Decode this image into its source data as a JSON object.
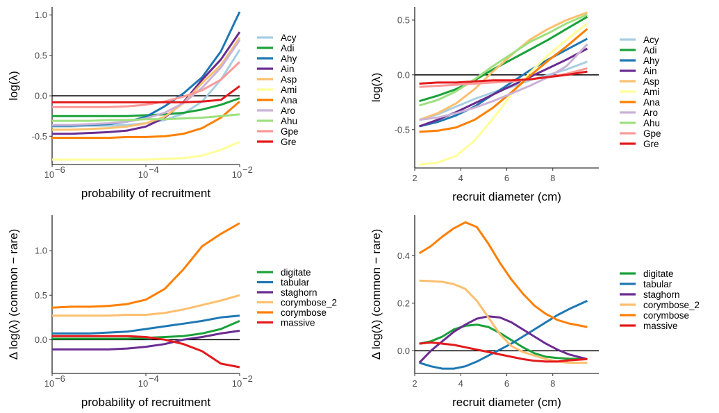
{
  "colors": {
    "Acy": "#a6cee3",
    "Adi": "#1aa13a",
    "Ahy": "#1f78b4",
    "Ain": "#6a2c91",
    "Asp": "#fdbf6f",
    "Ami": "#ffff99",
    "Ana": "#ff7f00",
    "Aro": "#cab2d6",
    "Ahu": "#9ee07f",
    "Gpe": "#fb9a99",
    "Gre": "#e31a1c",
    "digitate": "#1aa13a",
    "tabular": "#1f78b4",
    "staghorn": "#6a2c91",
    "corymbose_2": "#fdbf6f",
    "corymbose": "#ff7f00",
    "massive": "#e31a1c"
  },
  "chart_data": [
    {
      "id": "tl",
      "type": "line",
      "xscale": "log10",
      "xlabel": "probability of recruitment",
      "ylabel": "log(λ)",
      "xlim": [
        -6,
        -2
      ],
      "ylim": [
        -0.85,
        1.1
      ],
      "xticks": [
        -6,
        -4,
        -2
      ],
      "xticklabels": [
        "10",
        "10",
        "10"
      ],
      "xtickexp": [
        "−6",
        "−4",
        "−2"
      ],
      "yticks": [
        -0.5,
        0,
        0.5,
        1
      ],
      "yticklabels": [
        "-0.5",
        "0.0",
        "0.5",
        "1.0"
      ],
      "hline": 0,
      "x": [
        -6,
        -5.6,
        -5.2,
        -4.8,
        -4.4,
        -4,
        -3.6,
        -3.2,
        -2.8,
        -2.4,
        -2
      ],
      "series": [
        {
          "name": "Acy",
          "values": [
            -0.38,
            -0.38,
            -0.37,
            -0.37,
            -0.36,
            -0.34,
            -0.3,
            -0.22,
            -0.07,
            0.2,
            0.57
          ]
        },
        {
          "name": "Adi",
          "values": [
            -0.25,
            -0.25,
            -0.25,
            -0.25,
            -0.25,
            -0.24,
            -0.23,
            -0.21,
            -0.17,
            -0.11,
            -0.03
          ]
        },
        {
          "name": "Ahy",
          "values": [
            -0.37,
            -0.37,
            -0.36,
            -0.35,
            -0.32,
            -0.26,
            -0.13,
            0.03,
            0.23,
            0.55,
            1.04
          ]
        },
        {
          "name": "Ain",
          "values": [
            -0.47,
            -0.47,
            -0.46,
            -0.45,
            -0.43,
            -0.38,
            -0.27,
            -0.08,
            0.2,
            0.45,
            0.79
          ]
        },
        {
          "name": "Asp",
          "values": [
            -0.42,
            -0.42,
            -0.41,
            -0.4,
            -0.38,
            -0.34,
            -0.26,
            -0.09,
            0.16,
            0.38,
            0.72
          ]
        },
        {
          "name": "Ami",
          "values": [
            -0.79,
            -0.79,
            -0.79,
            -0.79,
            -0.79,
            -0.79,
            -0.78,
            -0.77,
            -0.74,
            -0.67,
            -0.57
          ]
        },
        {
          "name": "Ana",
          "values": [
            -0.52,
            -0.52,
            -0.52,
            -0.52,
            -0.51,
            -0.51,
            -0.5,
            -0.47,
            -0.4,
            -0.27,
            -0.07
          ]
        },
        {
          "name": "Aro",
          "values": [
            -0.36,
            -0.36,
            -0.35,
            -0.34,
            -0.32,
            -0.28,
            -0.21,
            -0.09,
            0.1,
            0.35,
            0.69
          ]
        },
        {
          "name": "Ahu",
          "values": [
            -0.31,
            -0.31,
            -0.31,
            -0.3,
            -0.3,
            -0.29,
            -0.29,
            -0.28,
            -0.27,
            -0.25,
            -0.23
          ]
        },
        {
          "name": "Gpe",
          "values": [
            -0.14,
            -0.14,
            -0.14,
            -0.14,
            -0.13,
            -0.11,
            -0.07,
            -0.01,
            0.07,
            0.2,
            0.42
          ]
        },
        {
          "name": "Gre",
          "values": [
            -0.08,
            -0.08,
            -0.08,
            -0.08,
            -0.08,
            -0.08,
            -0.08,
            -0.08,
            -0.07,
            -0.05,
            0.12
          ]
        }
      ]
    },
    {
      "id": "tr",
      "type": "line",
      "xscale": "linear",
      "xlabel": "recruit diameter (cm)",
      "ylabel": "log(λ)",
      "xlim": [
        2,
        10
      ],
      "ylim": [
        -0.85,
        0.62
      ],
      "xticks": [
        2,
        4,
        6,
        8
      ],
      "xticklabels": [
        "2",
        "4",
        "6",
        "8"
      ],
      "yticks": [
        -0.5,
        0,
        0.5
      ],
      "yticklabels": [
        "-0.5",
        "0.0",
        "0.5"
      ],
      "hline": 0,
      "x": [
        2.2,
        3,
        3.8,
        4.6,
        5.4,
        6.2,
        7,
        7.8,
        8.6,
        9.5
      ],
      "series": [
        {
          "name": "Acy",
          "values": [
            -0.41,
            -0.36,
            -0.29,
            -0.22,
            -0.16,
            -0.11,
            -0.05,
            0.0,
            0.05,
            0.12
          ]
        },
        {
          "name": "Adi",
          "values": [
            -0.24,
            -0.19,
            -0.13,
            -0.05,
            0.05,
            0.14,
            0.23,
            0.32,
            0.42,
            0.53
          ]
        },
        {
          "name": "Ahy",
          "values": [
            -0.47,
            -0.43,
            -0.37,
            -0.29,
            -0.18,
            -0.07,
            0.04,
            0.14,
            0.23,
            0.33
          ]
        },
        {
          "name": "Ain",
          "values": [
            -0.47,
            -0.41,
            -0.34,
            -0.26,
            -0.18,
            -0.1,
            -0.02,
            0.06,
            0.14,
            0.24
          ]
        },
        {
          "name": "Asp",
          "values": [
            -0.41,
            -0.35,
            -0.26,
            -0.13,
            0.03,
            0.18,
            0.32,
            0.42,
            0.5,
            0.57
          ]
        },
        {
          "name": "Ami",
          "values": [
            -0.82,
            -0.8,
            -0.74,
            -0.6,
            -0.4,
            -0.18,
            0.02,
            0.18,
            0.32,
            0.47
          ]
        },
        {
          "name": "Ana",
          "values": [
            -0.52,
            -0.51,
            -0.48,
            -0.41,
            -0.3,
            -0.16,
            -0.01,
            0.13,
            0.26,
            0.42
          ]
        },
        {
          "name": "Aro",
          "values": [
            -0.41,
            -0.39,
            -0.35,
            -0.3,
            -0.24,
            -0.17,
            -0.1,
            -0.02,
            0.08,
            0.28
          ]
        },
        {
          "name": "Ahu",
          "values": [
            -0.28,
            -0.23,
            -0.15,
            -0.04,
            0.08,
            0.19,
            0.3,
            0.38,
            0.47,
            0.55
          ]
        },
        {
          "name": "Gpe",
          "values": [
            -0.11,
            -0.1,
            -0.09,
            -0.08,
            -0.07,
            -0.06,
            -0.04,
            -0.02,
            0.01,
            0.06
          ]
        },
        {
          "name": "Gre",
          "values": [
            -0.08,
            -0.07,
            -0.07,
            -0.06,
            -0.05,
            -0.05,
            -0.04,
            -0.02,
            0.0,
            0.03
          ]
        }
      ]
    },
    {
      "id": "bl",
      "type": "line",
      "xscale": "log10",
      "xlabel": "probability of recruitment",
      "ylabel": "Δ log(λ) (common − rare)",
      "xlim": [
        -6,
        -2
      ],
      "ylim": [
        -0.38,
        1.4
      ],
      "xticks": [
        -6,
        -4,
        -2
      ],
      "xticklabels": [
        "10",
        "10",
        "10"
      ],
      "xtickexp": [
        "−6",
        "−4",
        "−2"
      ],
      "yticks": [
        0,
        0.5,
        1
      ],
      "yticklabels": [
        "0.0",
        "0.5",
        "1.0"
      ],
      "hline": 0,
      "x": [
        -6,
        -5.6,
        -5.2,
        -4.8,
        -4.4,
        -4,
        -3.6,
        -3.2,
        -2.8,
        -2.4,
        -2
      ],
      "series": [
        {
          "name": "digitate",
          "values": [
            0.01,
            0.01,
            0.01,
            0.01,
            0.01,
            0.02,
            0.03,
            0.04,
            0.07,
            0.12,
            0.21
          ]
        },
        {
          "name": "tabular",
          "values": [
            0.07,
            0.07,
            0.07,
            0.08,
            0.09,
            0.12,
            0.15,
            0.18,
            0.21,
            0.25,
            0.27
          ]
        },
        {
          "name": "staghorn",
          "values": [
            -0.11,
            -0.11,
            -0.11,
            -0.11,
            -0.1,
            -0.08,
            -0.05,
            0.0,
            0.03,
            0.07,
            0.1
          ]
        },
        {
          "name": "corymbose_2",
          "values": [
            0.27,
            0.27,
            0.27,
            0.27,
            0.28,
            0.28,
            0.3,
            0.34,
            0.39,
            0.44,
            0.5
          ]
        },
        {
          "name": "corymbose",
          "values": [
            0.36,
            0.37,
            0.37,
            0.38,
            0.4,
            0.45,
            0.57,
            0.79,
            1.05,
            1.19,
            1.31
          ]
        },
        {
          "name": "massive",
          "values": [
            0.04,
            0.04,
            0.04,
            0.04,
            0.04,
            0.03,
            0.0,
            -0.05,
            -0.13,
            -0.27,
            -0.31
          ]
        }
      ]
    },
    {
      "id": "br",
      "type": "line",
      "xscale": "linear",
      "xlabel": "recruit diameter (cm)",
      "ylabel": "Δ log(λ) (common − rare)",
      "xlim": [
        2,
        10
      ],
      "ylim": [
        -0.095,
        0.57
      ],
      "xticks": [
        2,
        4,
        6,
        8
      ],
      "xticklabels": [
        "2",
        "4",
        "6",
        "8"
      ],
      "yticks": [
        0,
        0.2,
        0.4
      ],
      "yticklabels": [
        "0.0",
        "0.2",
        "0.4"
      ],
      "hline": 0,
      "x": [
        2.2,
        2.7,
        3.2,
        3.7,
        4.2,
        4.7,
        5.2,
        5.7,
        6.2,
        6.7,
        7.2,
        7.7,
        8.2,
        8.7,
        9.5
      ],
      "series": [
        {
          "name": "digitate",
          "values": [
            0.03,
            0.04,
            0.06,
            0.09,
            0.105,
            0.11,
            0.1,
            0.075,
            0.045,
            0.015,
            -0.01,
            -0.025,
            -0.03,
            -0.033,
            -0.035
          ]
        },
        {
          "name": "tabular",
          "values": [
            -0.05,
            -0.065,
            -0.075,
            -0.075,
            -0.065,
            -0.045,
            -0.02,
            0.005,
            0.03,
            0.06,
            0.09,
            0.12,
            0.15,
            0.175,
            0.21
          ]
        },
        {
          "name": "staghorn",
          "values": [
            -0.05,
            0.0,
            0.04,
            0.08,
            0.11,
            0.135,
            0.145,
            0.14,
            0.12,
            0.09,
            0.06,
            0.03,
            0.005,
            -0.015,
            -0.035
          ]
        },
        {
          "name": "corymbose_2",
          "values": [
            0.295,
            0.293,
            0.29,
            0.28,
            0.26,
            0.21,
            0.14,
            0.07,
            0.02,
            -0.005,
            -0.02,
            -0.035,
            -0.045,
            -0.05,
            -0.05
          ]
        },
        {
          "name": "corymbose",
          "values": [
            0.41,
            0.44,
            0.48,
            0.515,
            0.54,
            0.52,
            0.45,
            0.37,
            0.3,
            0.24,
            0.19,
            0.155,
            0.13,
            0.115,
            0.1
          ]
        },
        {
          "name": "massive",
          "values": [
            0.03,
            0.035,
            0.03,
            0.025,
            0.015,
            0.005,
            -0.005,
            -0.015,
            -0.025,
            -0.035,
            -0.042,
            -0.045,
            -0.045,
            -0.04,
            -0.035
          ]
        }
      ]
    }
  ]
}
